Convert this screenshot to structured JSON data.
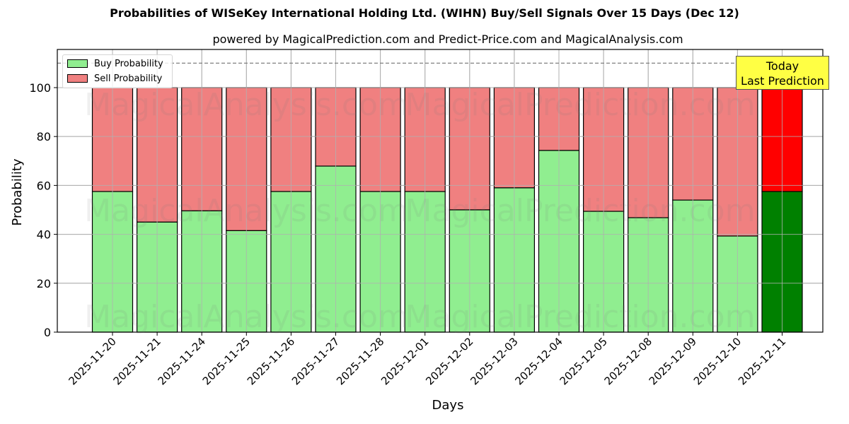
{
  "title": "Probabilities of WISeKey International Holding Ltd. (WIHN) Buy/Sell Signals Over 15 Days (Dec 12)",
  "subtitle": "powered by MagicalPrediction.com and Predict-Price.com and MagicalAnalysis.com",
  "watermarks": [
    "MagicalAnalysis.com",
    "MagicalPrediction.com"
  ],
  "legend": {
    "items": [
      {
        "label": "Buy Probability",
        "color": "#90ee90"
      },
      {
        "label": "Sell Probability",
        "color": "#f08080"
      }
    ]
  },
  "annotation": {
    "line1": "Today",
    "line2": "Last Prediction"
  },
  "colors": {
    "buy": "#90ee90",
    "sell": "#f08080",
    "buy_today": "#008000",
    "sell_today": "#ff0000",
    "annotation_bg": "#ffff44"
  },
  "chart_data": {
    "type": "bar",
    "stacked": true,
    "title": "Probabilities of WISeKey International Holding Ltd. (WIHN) Buy/Sell Signals Over 15 Days (Dec 12)",
    "subtitle": "powered by MagicalPrediction.com and Predict-Price.com and MagicalAnalysis.com",
    "xlabel": "Days",
    "ylabel": "Probability",
    "ylim": [
      0,
      115
    ],
    "yticks": [
      0,
      20,
      40,
      60,
      80,
      100
    ],
    "grid": true,
    "legend_position": "upper left",
    "reference_line": {
      "y": 110,
      "style": "dashed",
      "color": "#808080"
    },
    "categories": [
      "2025-11-20",
      "2025-11-21",
      "2025-11-24",
      "2025-11-25",
      "2025-11-26",
      "2025-11-27",
      "2025-11-28",
      "2025-12-01",
      "2025-12-02",
      "2025-12-03",
      "2025-12-04",
      "2025-12-05",
      "2025-12-08",
      "2025-12-09",
      "2025-12-10",
      "2025-12-11"
    ],
    "series": [
      {
        "name": "Buy Probability",
        "values": [
          57.5,
          45.0,
          49.6,
          41.5,
          57.5,
          67.9,
          57.5,
          57.5,
          50.0,
          59.0,
          74.3,
          49.4,
          46.8,
          54.0,
          39.3,
          57.5
        ]
      },
      {
        "name": "Sell Probability",
        "values": [
          42.5,
          55.0,
          50.4,
          58.5,
          42.5,
          32.1,
          42.5,
          42.5,
          50.0,
          41.0,
          25.7,
          50.6,
          53.2,
          46.0,
          60.7,
          42.5
        ]
      }
    ],
    "highlight": {
      "category": "2025-12-11",
      "label": "Today Last Prediction"
    }
  }
}
